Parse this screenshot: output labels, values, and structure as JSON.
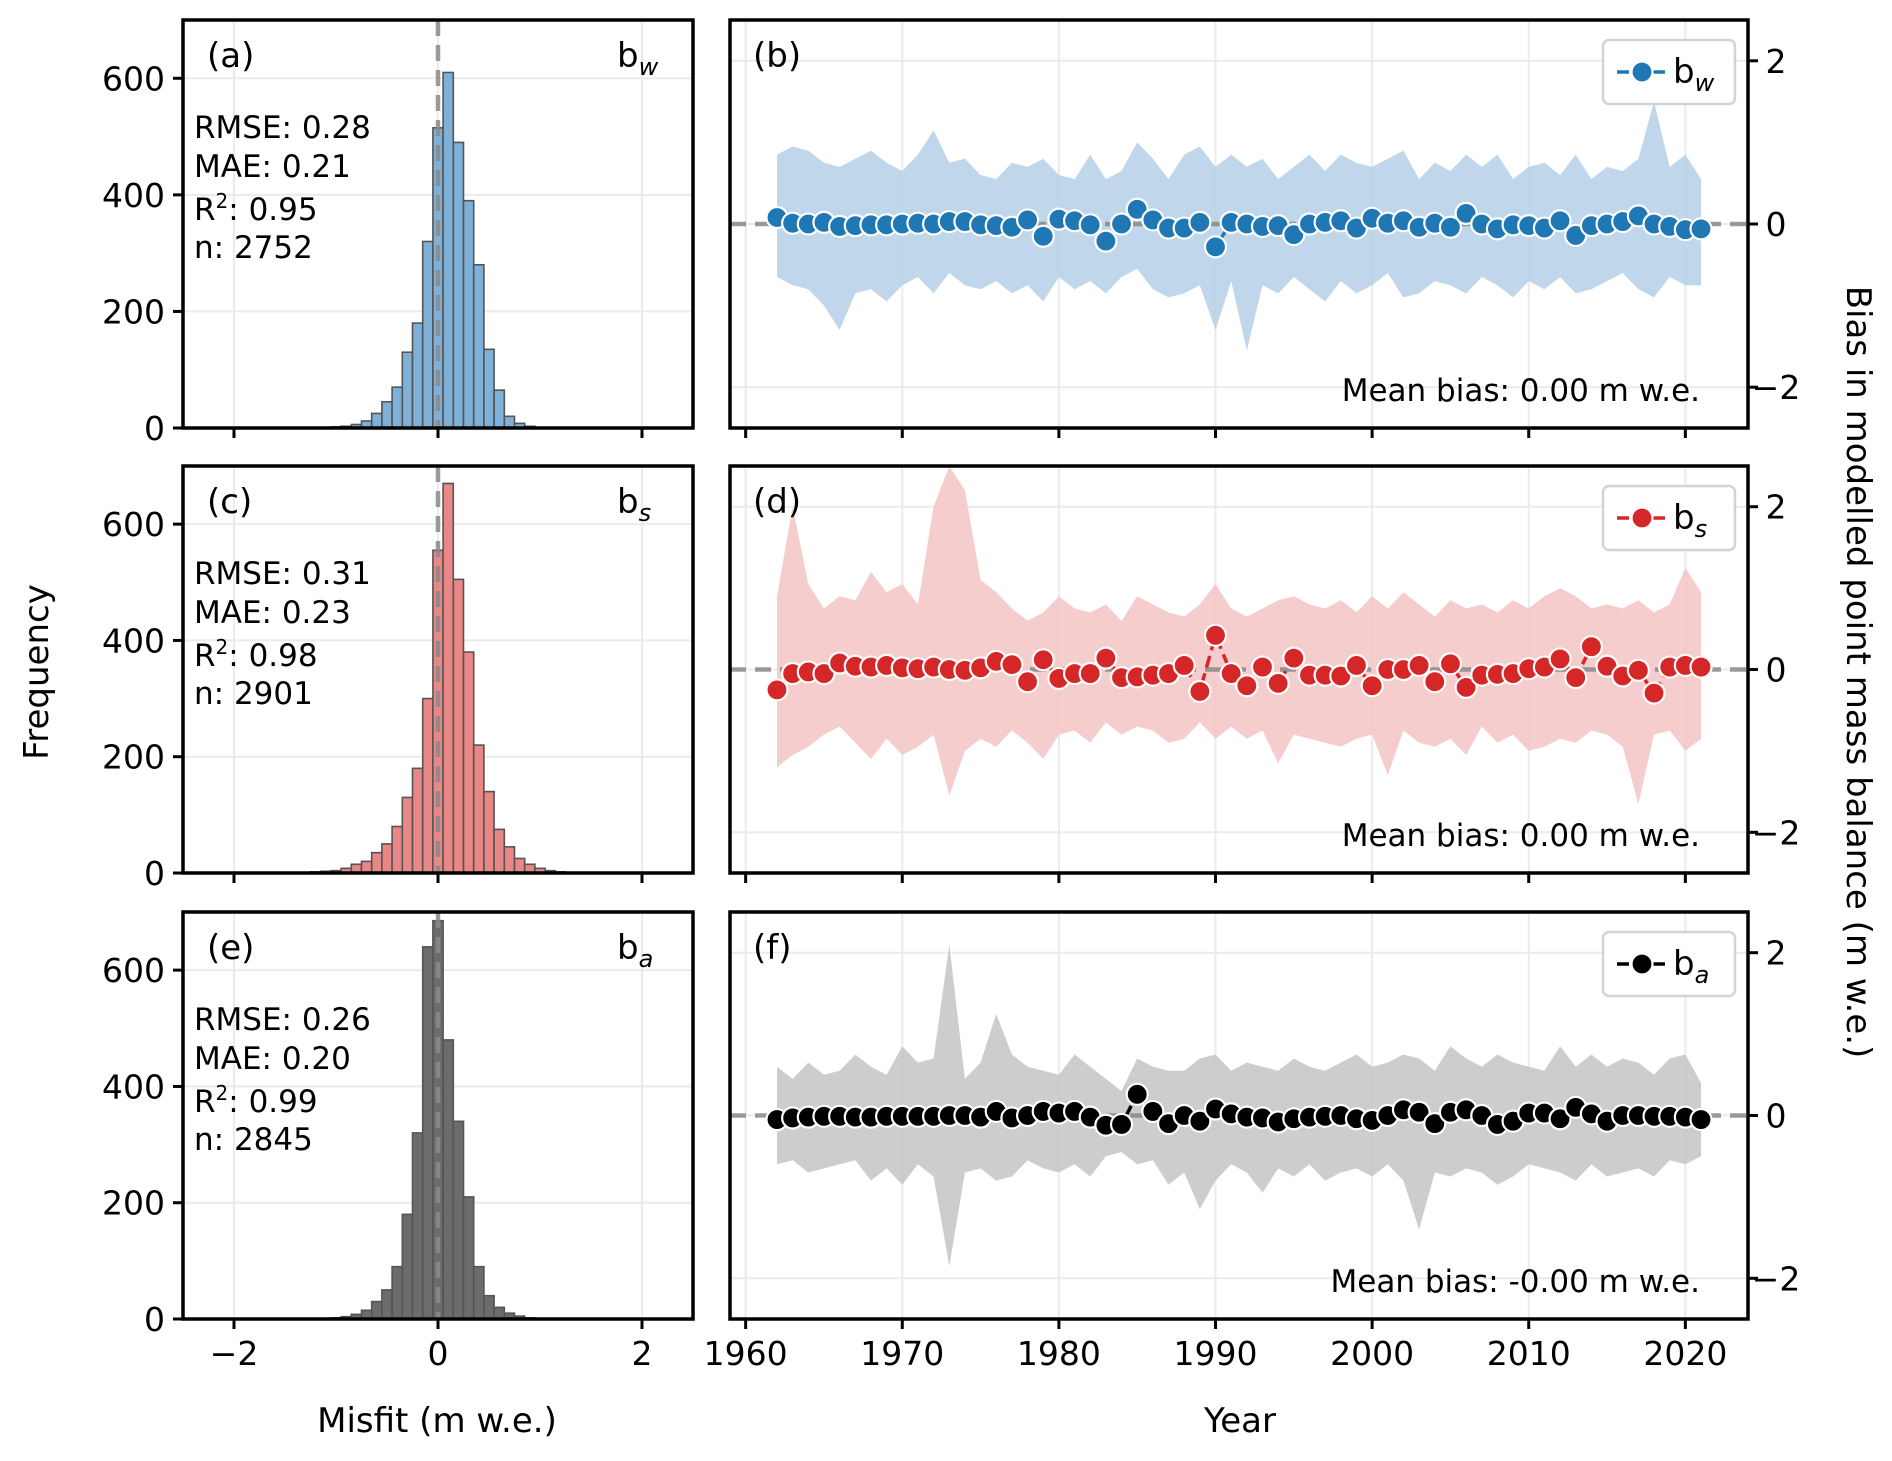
{
  "figure": {
    "freq_ylabel": "Frequency",
    "misfit_xlabel": "Misfit (m w.e.)",
    "year_xlabel": "Year",
    "bias_ylabel": "Bias in modelled point mass balance (m w.e.)"
  },
  "chart_data": [
    {
      "type": "bar",
      "panel": "(a)",
      "tag": {
        "base": "b",
        "sub": "w"
      },
      "stats": {
        "rmse": "RMSE: 0.28",
        "mae": "MAE: 0.21",
        "r2_prefix": "R",
        "r2_sup": "2",
        "r2_value": ": 0.95",
        "n": "n: 2752"
      },
      "color": "#7fb0d8",
      "bin_width": 0.1,
      "bin_starts": [
        -1.05,
        -0.95,
        -0.85,
        -0.75,
        -0.65,
        -0.55,
        -0.45,
        -0.35,
        -0.25,
        -0.15,
        -0.05,
        0.05,
        0.15,
        0.25,
        0.35,
        0.45,
        0.55,
        0.65,
        0.75,
        0.85,
        0.95
      ],
      "values": [
        2,
        3,
        6,
        12,
        25,
        45,
        70,
        130,
        180,
        320,
        515,
        610,
        490,
        390,
        280,
        135,
        65,
        20,
        8,
        3,
        1
      ],
      "xlim": [
        -2.5,
        2.5
      ],
      "ylim": [
        0,
        700
      ],
      "xticks": [
        -2,
        0,
        2
      ],
      "xticklabels": [
        "−2",
        "0",
        "2"
      ],
      "yticks": [
        0,
        200,
        400,
        600
      ],
      "yticklabels": [
        "0",
        "200",
        "400",
        "600"
      ]
    },
    {
      "type": "line",
      "panel": "(b)",
      "legend": {
        "base": "b",
        "sub": "w"
      },
      "annotation": "Mean bias: 0.00 m w.e.",
      "color": "#1f77b4",
      "band_color": "#b5d0e8",
      "x": [
        1962,
        1963,
        1964,
        1965,
        1966,
        1967,
        1968,
        1969,
        1970,
        1971,
        1972,
        1973,
        1974,
        1975,
        1976,
        1977,
        1978,
        1979,
        1980,
        1981,
        1982,
        1983,
        1984,
        1985,
        1986,
        1987,
        1988,
        1989,
        1990,
        1991,
        1992,
        1993,
        1994,
        1995,
        1996,
        1997,
        1998,
        1999,
        2000,
        2001,
        2002,
        2003,
        2004,
        2005,
        2006,
        2007,
        2008,
        2009,
        2010,
        2011,
        2012,
        2013,
        2014,
        2015,
        2016,
        2017,
        2018,
        2019,
        2020,
        2021
      ],
      "y": [
        0.08,
        0.01,
        0.0,
        0.02,
        -0.03,
        -0.02,
        -0.01,
        -0.01,
        0.0,
        0.01,
        0.0,
        0.03,
        0.03,
        -0.01,
        -0.02,
        -0.04,
        0.05,
        -0.15,
        0.06,
        0.04,
        -0.01,
        -0.21,
        0.0,
        0.18,
        0.05,
        -0.05,
        -0.05,
        0.02,
        -0.28,
        0.02,
        0.0,
        -0.03,
        -0.02,
        -0.13,
        0.0,
        0.02,
        0.04,
        -0.05,
        0.07,
        0.01,
        0.04,
        -0.04,
        0.01,
        -0.04,
        0.13,
        0.0,
        -0.06,
        -0.01,
        -0.02,
        -0.05,
        0.04,
        -0.14,
        -0.02,
        0.0,
        0.03,
        0.1,
        0.0,
        -0.03,
        -0.07,
        -0.06
      ],
      "upper": [
        0.85,
        0.95,
        0.9,
        0.75,
        0.7,
        0.8,
        0.9,
        0.75,
        0.65,
        0.85,
        1.15,
        0.75,
        0.8,
        0.6,
        0.55,
        0.75,
        0.7,
        0.8,
        0.6,
        0.55,
        0.85,
        0.55,
        0.65,
        1.0,
        0.8,
        0.55,
        0.85,
        0.95,
        0.7,
        0.85,
        0.7,
        0.8,
        0.55,
        0.7,
        0.85,
        0.65,
        0.85,
        0.75,
        0.7,
        0.8,
        0.9,
        0.55,
        0.75,
        0.65,
        0.85,
        0.7,
        0.85,
        0.55,
        0.7,
        0.75,
        0.6,
        0.85,
        0.55,
        0.7,
        0.65,
        0.8,
        1.5,
        0.7,
        0.85,
        0.55
      ],
      "lower": [
        -0.65,
        -0.75,
        -0.8,
        -1.0,
        -1.3,
        -0.85,
        -0.8,
        -0.95,
        -0.75,
        -0.65,
        -0.85,
        -0.6,
        -0.75,
        -0.8,
        -0.7,
        -0.85,
        -0.75,
        -0.95,
        -0.65,
        -0.8,
        -0.7,
        -0.85,
        -0.65,
        -0.55,
        -0.8,
        -0.9,
        -0.85,
        -0.75,
        -1.3,
        -0.7,
        -1.55,
        -0.75,
        -0.85,
        -0.65,
        -0.8,
        -0.95,
        -0.7,
        -0.85,
        -0.75,
        -0.6,
        -0.9,
        -0.85,
        -0.7,
        -0.75,
        -0.85,
        -0.65,
        -0.75,
        -0.9,
        -0.7,
        -0.8,
        -0.65,
        -0.85,
        -0.8,
        -0.7,
        -0.6,
        -0.8,
        -0.9,
        -0.65,
        -0.75,
        -0.75
      ],
      "xlim": [
        1959,
        2024
      ],
      "ylim": [
        -2.5,
        2.5
      ],
      "xticks": [
        1960,
        1970,
        1980,
        1990,
        2000,
        2010,
        2020
      ],
      "yticks": [
        -2,
        0,
        2
      ],
      "yticklabels": [
        "−2",
        "0",
        "2"
      ]
    },
    {
      "type": "bar",
      "panel": "(c)",
      "tag": {
        "base": "b",
        "sub": "s"
      },
      "stats": {
        "rmse": "RMSE: 0.31",
        "mae": "MAE: 0.23",
        "r2_prefix": "R",
        "r2_sup": "2",
        "r2_value": ": 0.98",
        "n": "n: 2901"
      },
      "color": "#e88786",
      "bin_width": 0.1,
      "bin_starts": [
        -1.35,
        -1.25,
        -1.15,
        -1.05,
        -0.95,
        -0.85,
        -0.75,
        -0.65,
        -0.55,
        -0.45,
        -0.35,
        -0.25,
        -0.15,
        -0.05,
        0.05,
        0.15,
        0.25,
        0.35,
        0.45,
        0.55,
        0.65,
        0.75,
        0.85,
        0.95,
        1.05,
        1.15
      ],
      "values": [
        1,
        2,
        3,
        4,
        8,
        15,
        20,
        35,
        50,
        80,
        130,
        180,
        300,
        555,
        670,
        505,
        380,
        220,
        140,
        75,
        45,
        25,
        15,
        8,
        4,
        2
      ],
      "xlim": [
        -2.5,
        2.5
      ],
      "ylim": [
        0,
        700
      ],
      "xticks": [
        -2,
        0,
        2
      ],
      "xticklabels": [
        "−2",
        "0",
        "2"
      ],
      "yticks": [
        0,
        200,
        400,
        600
      ],
      "yticklabels": [
        "0",
        "200",
        "400",
        "600"
      ]
    },
    {
      "type": "line",
      "panel": "(d)",
      "legend": {
        "base": "b",
        "sub": "s"
      },
      "annotation": "Mean bias: 0.00 m w.e.",
      "color": "#d62728",
      "band_color": "#f5c4c4",
      "x": [
        1962,
        1963,
        1964,
        1965,
        1966,
        1967,
        1968,
        1969,
        1970,
        1971,
        1972,
        1973,
        1974,
        1975,
        1976,
        1977,
        1978,
        1979,
        1980,
        1981,
        1982,
        1983,
        1984,
        1985,
        1986,
        1987,
        1988,
        1989,
        1990,
        1991,
        1992,
        1993,
        1994,
        1995,
        1996,
        1997,
        1998,
        1999,
        2000,
        2001,
        2002,
        2003,
        2004,
        2005,
        2006,
        2007,
        2008,
        2009,
        2010,
        2011,
        2012,
        2013,
        2014,
        2015,
        2016,
        2017,
        2018,
        2019,
        2020,
        2021
      ],
      "y": [
        -0.25,
        -0.05,
        -0.03,
        -0.05,
        0.08,
        0.04,
        0.03,
        0.05,
        0.02,
        0.01,
        0.03,
        0.0,
        -0.01,
        0.02,
        0.1,
        0.06,
        -0.15,
        0.12,
        -0.11,
        -0.05,
        -0.05,
        0.14,
        -0.1,
        -0.09,
        -0.07,
        -0.05,
        0.05,
        -0.27,
        0.42,
        -0.05,
        -0.2,
        0.03,
        -0.17,
        0.14,
        -0.07,
        -0.07,
        -0.08,
        0.05,
        -0.2,
        0.0,
        0.0,
        0.05,
        -0.15,
        0.07,
        -0.22,
        -0.07,
        -0.06,
        -0.05,
        0.01,
        0.03,
        0.13,
        -0.1,
        0.28,
        0.04,
        -0.08,
        -0.01,
        -0.29,
        0.03,
        0.05,
        0.03
      ],
      "upper": [
        0.9,
        2.0,
        1.05,
        0.75,
        0.9,
        0.85,
        1.2,
        0.95,
        1.05,
        0.8,
        2.0,
        2.5,
        2.2,
        1.1,
        0.95,
        0.75,
        0.6,
        0.7,
        0.9,
        0.75,
        0.7,
        0.8,
        0.6,
        0.9,
        0.8,
        0.7,
        0.65,
        0.8,
        1.05,
        0.75,
        0.65,
        0.75,
        0.85,
        0.9,
        0.8,
        0.75,
        0.85,
        0.7,
        0.9,
        0.75,
        0.95,
        0.8,
        0.65,
        0.85,
        0.75,
        0.8,
        0.7,
        0.85,
        0.75,
        0.9,
        1.0,
        0.9,
        0.75,
        0.8,
        0.75,
        0.85,
        0.7,
        0.8,
        1.25,
        0.95
      ],
      "lower": [
        -1.2,
        -1.05,
        -0.95,
        -0.8,
        -0.7,
        -0.9,
        -1.1,
        -0.85,
        -1.05,
        -0.95,
        -0.8,
        -1.55,
        -1.0,
        -0.85,
        -0.95,
        -0.75,
        -0.9,
        -1.1,
        -0.8,
        -0.75,
        -0.9,
        -0.65,
        -0.8,
        -0.7,
        -0.75,
        -0.9,
        -0.85,
        -0.65,
        -0.85,
        -0.7,
        -0.85,
        -0.75,
        -1.15,
        -0.8,
        -0.85,
        -0.9,
        -0.95,
        -0.85,
        -0.8,
        -1.3,
        -0.75,
        -0.9,
        -0.95,
        -0.85,
        -1.05,
        -0.7,
        -0.9,
        -0.8,
        -1.0,
        -0.95,
        -0.85,
        -0.9,
        -0.75,
        -0.8,
        -0.95,
        -1.65,
        -0.8,
        -0.75,
        -1.0,
        -0.85
      ],
      "xlim": [
        1959,
        2024
      ],
      "ylim": [
        -2.5,
        2.5
      ],
      "xticks": [
        1960,
        1970,
        1980,
        1990,
        2000,
        2010,
        2020
      ],
      "yticks": [
        -2,
        0,
        2
      ],
      "yticklabels": [
        "−2",
        "0",
        "2"
      ]
    },
    {
      "type": "bar",
      "panel": "(e)",
      "tag": {
        "base": "b",
        "sub": "a"
      },
      "stats": {
        "rmse": "RMSE: 0.26",
        "mae": "MAE: 0.20",
        "r2_prefix": "R",
        "r2_sup": "2",
        "r2_value": ": 0.99",
        "n": "n: 2845"
      },
      "color": "#6c6c6c",
      "bin_width": 0.1,
      "bin_starts": [
        -1.05,
        -0.95,
        -0.85,
        -0.75,
        -0.65,
        -0.55,
        -0.45,
        -0.35,
        -0.25,
        -0.15,
        -0.05,
        0.05,
        0.15,
        0.25,
        0.35,
        0.45,
        0.55,
        0.65,
        0.75,
        0.85,
        0.95
      ],
      "values": [
        2,
        4,
        8,
        15,
        30,
        50,
        90,
        180,
        320,
        640,
        685,
        480,
        340,
        210,
        90,
        40,
        20,
        10,
        5,
        2,
        1
      ],
      "xlim": [
        -2.5,
        2.5
      ],
      "ylim": [
        0,
        700
      ],
      "xticks": [
        -2,
        0,
        2
      ],
      "xticklabels": [
        "−2",
        "0",
        "2"
      ],
      "yticks": [
        0,
        200,
        400,
        600
      ],
      "yticklabels": [
        "0",
        "200",
        "400",
        "600"
      ]
    },
    {
      "type": "line",
      "panel": "(f)",
      "legend": {
        "base": "b",
        "sub": "a"
      },
      "annotation": "Mean bias: -0.00 m w.e.",
      "color": "#000000",
      "band_color": "#c4c4c4",
      "x": [
        1962,
        1963,
        1964,
        1965,
        1966,
        1967,
        1968,
        1969,
        1970,
        1971,
        1972,
        1973,
        1974,
        1975,
        1976,
        1977,
        1978,
        1979,
        1980,
        1981,
        1982,
        1983,
        1984,
        1985,
        1986,
        1987,
        1988,
        1989,
        1990,
        1991,
        1992,
        1993,
        1994,
        1995,
        1996,
        1997,
        1998,
        1999,
        2000,
        2001,
        2002,
        2003,
        2004,
        2005,
        2006,
        2007,
        2008,
        2009,
        2010,
        2011,
        2012,
        2013,
        2014,
        2015,
        2016,
        2017,
        2018,
        2019,
        2020,
        2021
      ],
      "y": [
        -0.05,
        -0.03,
        -0.02,
        -0.01,
        -0.01,
        -0.02,
        -0.02,
        -0.01,
        -0.01,
        -0.01,
        -0.01,
        0.0,
        0.0,
        -0.02,
        0.05,
        -0.03,
        0.0,
        0.05,
        0.03,
        0.05,
        -0.02,
        -0.12,
        -0.11,
        0.26,
        0.05,
        -0.1,
        0.0,
        -0.07,
        0.08,
        0.02,
        -0.02,
        -0.03,
        -0.08,
        -0.04,
        -0.02,
        -0.01,
        0.0,
        -0.04,
        -0.06,
        0.0,
        0.07,
        0.04,
        -0.1,
        0.04,
        0.07,
        0.0,
        -0.11,
        -0.07,
        0.03,
        0.03,
        -0.04,
        0.1,
        0.02,
        -0.07,
        0.0,
        0.0,
        -0.01,
        -0.01,
        -0.02,
        -0.05
      ],
      "upper": [
        0.6,
        0.45,
        0.65,
        0.5,
        0.55,
        0.75,
        0.6,
        0.5,
        0.85,
        0.65,
        0.7,
        2.1,
        0.45,
        0.65,
        1.25,
        0.75,
        0.6,
        0.55,
        0.5,
        0.75,
        0.6,
        0.45,
        0.3,
        0.7,
        0.6,
        0.55,
        0.55,
        0.7,
        0.75,
        0.55,
        0.65,
        0.6,
        0.55,
        0.7,
        0.6,
        0.55,
        0.65,
        0.75,
        0.6,
        0.65,
        0.75,
        0.7,
        0.55,
        0.85,
        0.7,
        0.6,
        0.75,
        0.65,
        0.6,
        0.55,
        0.85,
        0.6,
        0.75,
        0.6,
        0.7,
        0.65,
        0.5,
        0.7,
        0.75,
        0.4
      ],
      "lower": [
        -0.6,
        -0.55,
        -0.7,
        -0.65,
        -0.6,
        -0.55,
        -0.8,
        -0.65,
        -0.85,
        -0.6,
        -0.75,
        -1.85,
        -0.7,
        -0.65,
        -0.8,
        -0.75,
        -0.55,
        -0.65,
        -0.7,
        -0.6,
        -0.75,
        -0.5,
        -0.45,
        -0.6,
        -0.55,
        -0.85,
        -0.7,
        -1.15,
        -0.8,
        -0.6,
        -0.7,
        -0.95,
        -0.65,
        -0.75,
        -0.6,
        -0.8,
        -0.7,
        -0.65,
        -0.75,
        -0.6,
        -0.8,
        -1.4,
        -0.7,
        -0.75,
        -0.65,
        -0.7,
        -0.85,
        -0.75,
        -0.6,
        -0.65,
        -0.7,
        -0.8,
        -0.6,
        -0.75,
        -0.7,
        -0.65,
        -0.75,
        -0.55,
        -0.6,
        -0.5
      ],
      "xlim": [
        1959,
        2024
      ],
      "ylim": [
        -2.5,
        2.5
      ],
      "xticks": [
        1960,
        1970,
        1980,
        1990,
        2000,
        2010,
        2020
      ],
      "yticks": [
        -2,
        0,
        2
      ],
      "yticklabels": [
        "−2",
        "0",
        "2"
      ]
    }
  ]
}
